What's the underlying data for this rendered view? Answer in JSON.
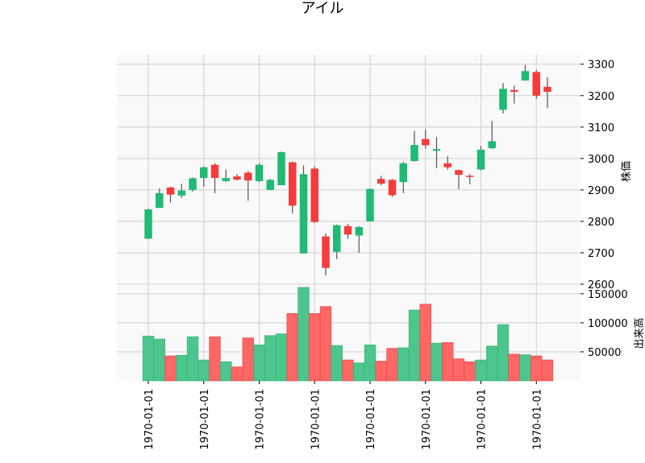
{
  "chart_data": {
    "type": "candlestick",
    "title": "アイル",
    "price_axis_label": "株価",
    "volume_axis_label": "出来高",
    "price_ylim": [
      2600,
      3330
    ],
    "volume_ylim": [
      0,
      165000
    ],
    "price_ticks": [
      2600,
      2700,
      2800,
      2900,
      3000,
      3100,
      3200,
      3300
    ],
    "volume_ticks": [
      50000,
      100000,
      150000
    ],
    "x_tick_labels": [
      "1970-01-01",
      "1970-01-01",
      "1970-01-01",
      "1970-01-01",
      "1970-01-01",
      "1970-01-01",
      "1970-01-01",
      "1970-01-01"
    ],
    "x_tick_candle_index": [
      0,
      5,
      10,
      15,
      20,
      25,
      30,
      35
    ],
    "up_color": "#1fba74",
    "down_color": "#f53c3c",
    "up_volume_color": "#4cc68d",
    "down_volume_color": "#ff6666",
    "grid": true,
    "candles": [
      {
        "o": 2745,
        "h": 2840,
        "l": 2745,
        "c": 2838,
        "v": 77000
      },
      {
        "o": 2843,
        "h": 2905,
        "l": 2843,
        "c": 2890,
        "v": 72000
      },
      {
        "o": 2908,
        "h": 2910,
        "l": 2860,
        "c": 2885,
        "v": 43000
      },
      {
        "o": 2882,
        "h": 2920,
        "l": 2875,
        "c": 2898,
        "v": 44000
      },
      {
        "o": 2900,
        "h": 2940,
        "l": 2895,
        "c": 2937,
        "v": 76000
      },
      {
        "o": 2938,
        "h": 2975,
        "l": 2910,
        "c": 2972,
        "v": 36000
      },
      {
        "o": 2980,
        "h": 2985,
        "l": 2890,
        "c": 2938,
        "v": 76000
      },
      {
        "o": 2928,
        "h": 2965,
        "l": 2925,
        "c": 2938,
        "v": 33000
      },
      {
        "o": 2943,
        "h": 2950,
        "l": 2930,
        "c": 2933,
        "v": 24000
      },
      {
        "o": 2955,
        "h": 2960,
        "l": 2865,
        "c": 2930,
        "v": 74000
      },
      {
        "o": 2928,
        "h": 2985,
        "l": 2925,
        "c": 2980,
        "v": 62000
      },
      {
        "o": 2900,
        "h": 2935,
        "l": 2900,
        "c": 2932,
        "v": 78000
      },
      {
        "o": 2915,
        "h": 3022,
        "l": 2915,
        "c": 3020,
        "v": 81000
      },
      {
        "o": 2988,
        "h": 2990,
        "l": 2825,
        "c": 2850,
        "v": 116000
      },
      {
        "o": 2698,
        "h": 2978,
        "l": 2698,
        "c": 2950,
        "v": 161000
      },
      {
        "o": 2968,
        "h": 2975,
        "l": 2795,
        "c": 2798,
        "v": 116000
      },
      {
        "o": 2752,
        "h": 2762,
        "l": 2628,
        "c": 2652,
        "v": 128000
      },
      {
        "o": 2703,
        "h": 2790,
        "l": 2680,
        "c": 2788,
        "v": 61000
      },
      {
        "o": 2785,
        "h": 2792,
        "l": 2745,
        "c": 2758,
        "v": 36000
      },
      {
        "o": 2755,
        "h": 2785,
        "l": 2700,
        "c": 2782,
        "v": 31000
      },
      {
        "o": 2800,
        "h": 2905,
        "l": 2800,
        "c": 2903,
        "v": 62000
      },
      {
        "o": 2935,
        "h": 2945,
        "l": 2915,
        "c": 2920,
        "v": 34000
      },
      {
        "o": 2932,
        "h": 2935,
        "l": 2878,
        "c": 2883,
        "v": 56000
      },
      {
        "o": 2925,
        "h": 2990,
        "l": 2890,
        "c": 2985,
        "v": 57000
      },
      {
        "o": 2992,
        "h": 3088,
        "l": 2990,
        "c": 3043,
        "v": 122000
      },
      {
        "o": 3062,
        "h": 3092,
        "l": 3032,
        "c": 3042,
        "v": 132000
      },
      {
        "o": 3025,
        "h": 3068,
        "l": 2970,
        "c": 3030,
        "v": 65000
      },
      {
        "o": 2985,
        "h": 3008,
        "l": 2965,
        "c": 2972,
        "v": 66000
      },
      {
        "o": 2963,
        "h": 2965,
        "l": 2903,
        "c": 2948,
        "v": 38000
      },
      {
        "o": 2945,
        "h": 2950,
        "l": 2918,
        "c": 2943,
        "v": 33000
      },
      {
        "o": 2965,
        "h": 3040,
        "l": 2962,
        "c": 3028,
        "v": 36000
      },
      {
        "o": 3033,
        "h": 3120,
        "l": 3030,
        "c": 3055,
        "v": 60000
      },
      {
        "o": 3155,
        "h": 3240,
        "l": 3143,
        "c": 3222,
        "v": 97000
      },
      {
        "o": 3218,
        "h": 3232,
        "l": 3175,
        "c": 3212,
        "v": 46000
      },
      {
        "o": 3248,
        "h": 3298,
        "l": 3248,
        "c": 3278,
        "v": 45000
      },
      {
        "o": 3275,
        "h": 3282,
        "l": 3190,
        "c": 3200,
        "v": 43000
      },
      {
        "o": 3228,
        "h": 3258,
        "l": 3160,
        "c": 3212,
        "v": 36000
      }
    ]
  }
}
